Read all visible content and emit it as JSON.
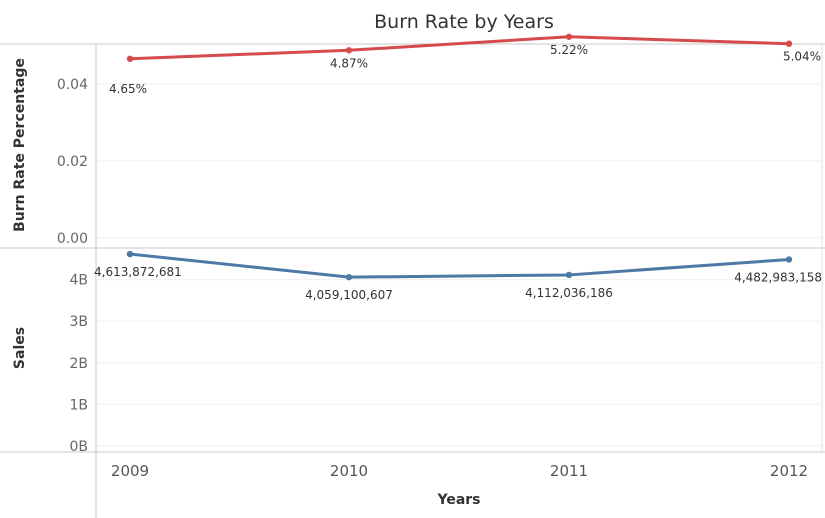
{
  "chart_data": {
    "type": "line",
    "title": "Burn Rate by Years",
    "xlabel": "Years",
    "x": [
      "2009",
      "2010",
      "2011",
      "2012"
    ],
    "panes": [
      {
        "ylabel": "Burn Rate Percentage",
        "ylim": [
          0,
          0.055
        ],
        "yticks": [
          0.0,
          0.02,
          0.04
        ],
        "ytick_labels": [
          "0.00",
          "0.02",
          "0.04"
        ],
        "color": "#d64a4a",
        "values": [
          0.0465,
          0.0487,
          0.0522,
          0.0504
        ],
        "data_labels": [
          "4.65%",
          "4.87%",
          "5.22%",
          "5.04%"
        ]
      },
      {
        "ylabel": "Sales",
        "ylim": [
          0,
          5000000000
        ],
        "yticks": [
          0,
          1000000000,
          2000000000,
          3000000000,
          4000000000
        ],
        "ytick_labels": [
          "0B",
          "1B",
          "2B",
          "3B",
          "4B"
        ],
        "color": "#4e79a7",
        "values": [
          4613872681,
          4059100607,
          4112036186,
          4482983158
        ],
        "data_labels": [
          "4,613,872,681",
          "4,059,100,607",
          "4,112,036,186",
          "4,482,983,158"
        ]
      }
    ],
    "grid": true
  }
}
